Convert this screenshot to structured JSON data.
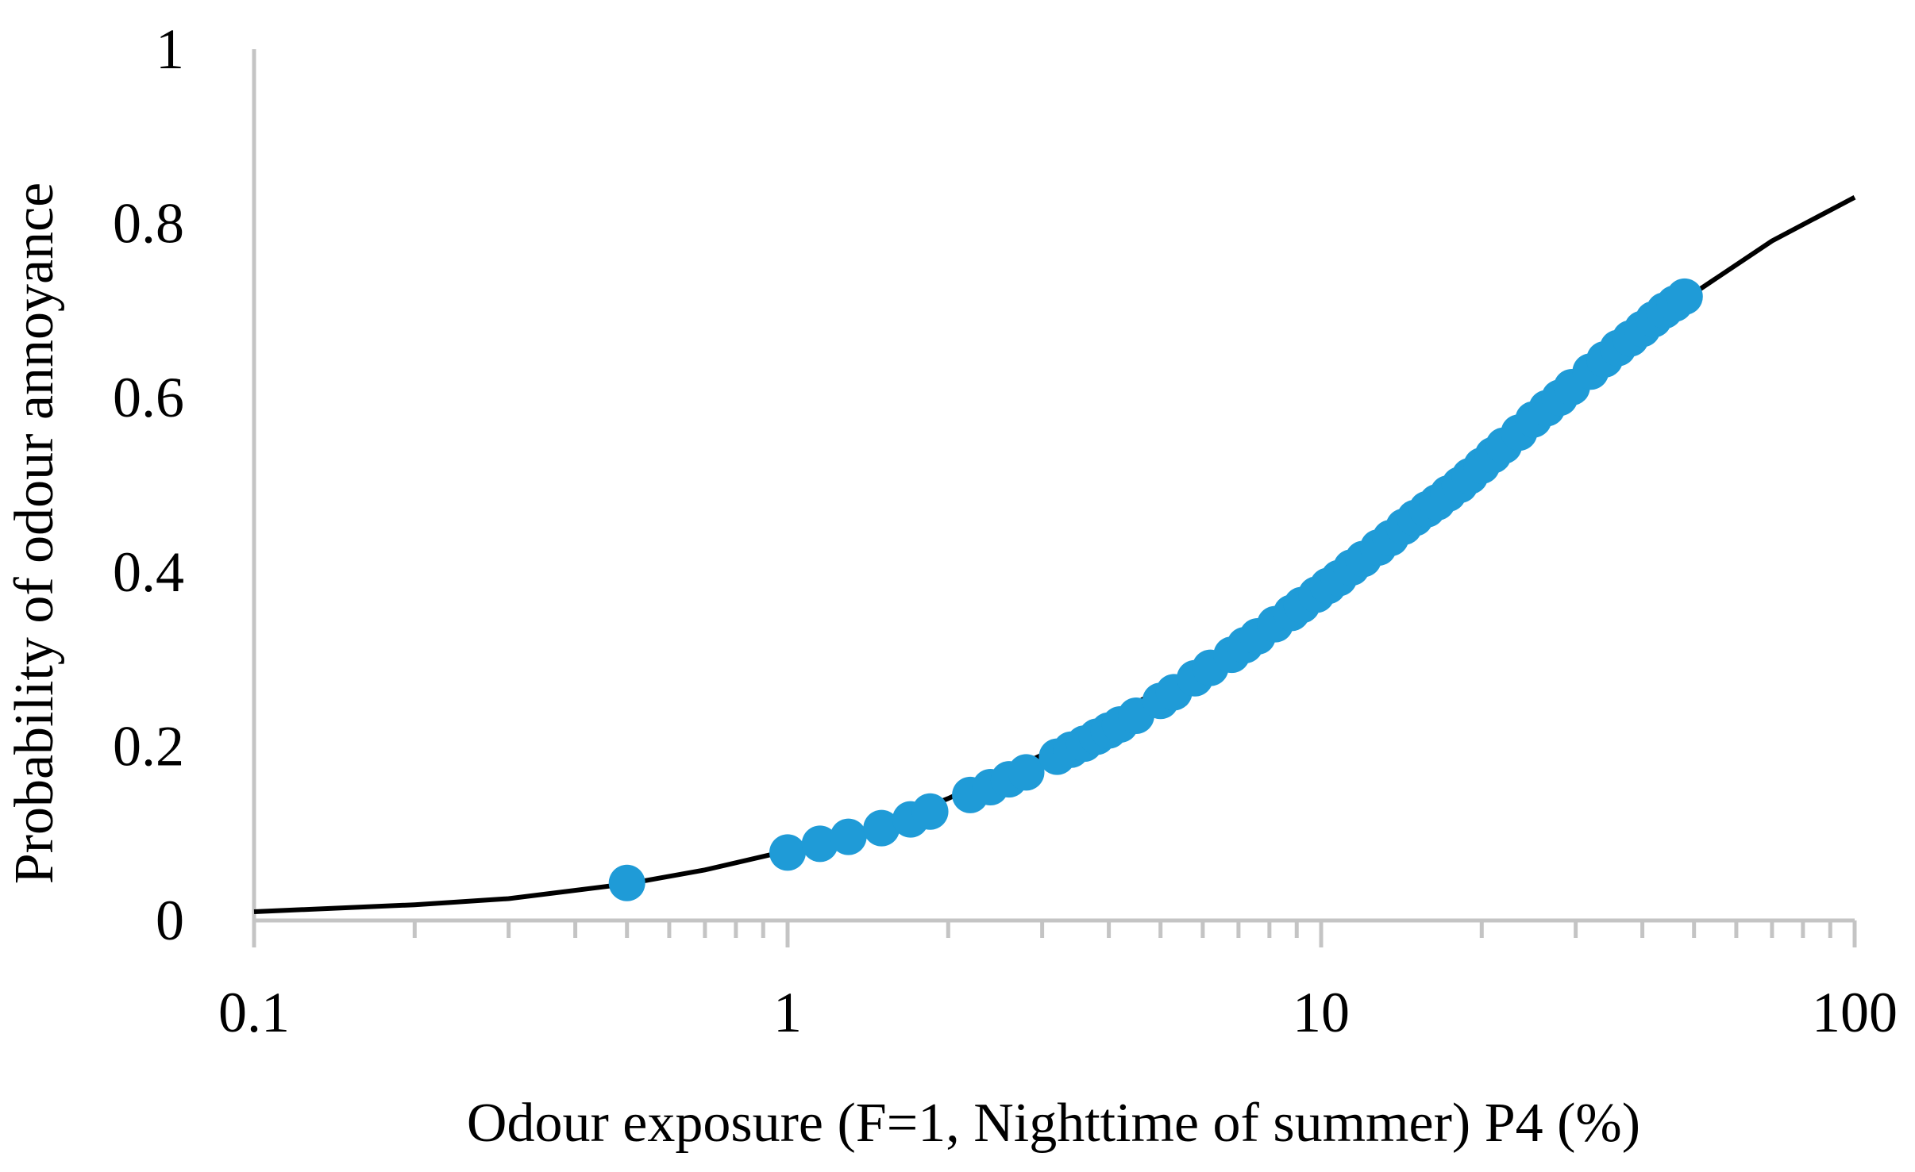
{
  "chart_data": {
    "type": "scatter",
    "title": "",
    "xlabel": "Odour exposure (F=1, Nighttime of summer) P4 (%)",
    "ylabel": "Probability of odour annoyance",
    "xscale": "log",
    "xlim": [
      0.1,
      100
    ],
    "ylim": [
      0,
      1
    ],
    "x_ticks": [
      0.1,
      1,
      10,
      100
    ],
    "x_tick_labels": [
      "0.1",
      "1",
      "10",
      "100"
    ],
    "y_ticks": [
      0,
      0.2,
      0.4,
      0.6,
      0.8,
      1
    ],
    "y_tick_labels": [
      "0",
      "0.2",
      "0.4",
      "0.6",
      "0.8",
      "1"
    ],
    "grid": false,
    "legend": "none",
    "fitted_curve": {
      "x": [
        0.1,
        0.2,
        0.3,
        0.5,
        0.7,
        1,
        1.5,
        2,
        3,
        5,
        7,
        10,
        15,
        20,
        30,
        50,
        70,
        100
      ],
      "y": [
        0.01,
        0.018,
        0.025,
        0.042,
        0.058,
        0.08,
        0.11,
        0.14,
        0.19,
        0.265,
        0.32,
        0.39,
        0.47,
        0.53,
        0.61,
        0.72,
        0.78,
        0.83
      ],
      "color": "#000000"
    },
    "series": [
      {
        "color": "#1f9bd7",
        "x": [
          0.5,
          1,
          1.15,
          1.3,
          1.5,
          1.7,
          1.85,
          2.2,
          2.4,
          2.6,
          2.8,
          3.2,
          3.4,
          3.6,
          3.8,
          4.0,
          4.2,
          4.5,
          5.0,
          5.3,
          5.8,
          6.2,
          6.8,
          7.2,
          7.6,
          8.2,
          8.8,
          9.2,
          9.8,
          10.3,
          10.8,
          11.4,
          12.0,
          12.8,
          13.5,
          14.3,
          15.0,
          15.8,
          16.5,
          17.3,
          18.2,
          19.0,
          20.0,
          21.0,
          22.0,
          23.5,
          25.0,
          26.5,
          28.0,
          29.5,
          32.0,
          34.0,
          36.0,
          38.0,
          40.0,
          42.0,
          44.0,
          46.0,
          48.0
        ],
        "y": [
          0.043,
          0.078,
          0.088,
          0.096,
          0.106,
          0.116,
          0.125,
          0.144,
          0.153,
          0.162,
          0.17,
          0.188,
          0.196,
          0.203,
          0.211,
          0.218,
          0.225,
          0.235,
          0.252,
          0.262,
          0.278,
          0.29,
          0.305,
          0.316,
          0.326,
          0.34,
          0.353,
          0.362,
          0.374,
          0.384,
          0.393,
          0.405,
          0.415,
          0.428,
          0.439,
          0.452,
          0.462,
          0.472,
          0.48,
          0.49,
          0.5,
          0.51,
          0.522,
          0.534,
          0.545,
          0.56,
          0.575,
          0.588,
          0.6,
          0.612,
          0.63,
          0.644,
          0.657,
          0.668,
          0.679,
          0.69,
          0.7,
          0.708,
          0.716
        ]
      }
    ]
  }
}
